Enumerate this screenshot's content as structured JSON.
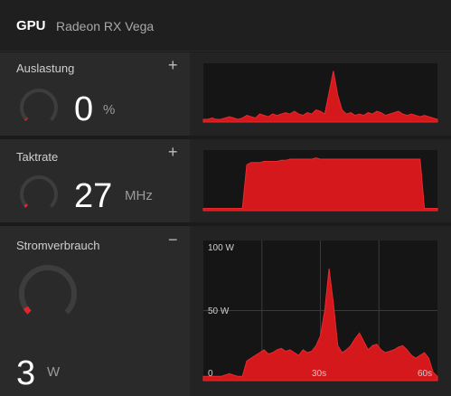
{
  "header": {
    "title": "GPU",
    "subtitle": "Radeon RX Vega"
  },
  "panels": [
    {
      "label": "Auslastung",
      "toggle": "+",
      "value": "0",
      "unit": "%",
      "gauge_fraction": 0.0,
      "graph_series": [
        2,
        2,
        3,
        2,
        2,
        3,
        4,
        3,
        2,
        3,
        5,
        4,
        3,
        6,
        5,
        4,
        6,
        5,
        6,
        7,
        6,
        8,
        6,
        5,
        7,
        6,
        9,
        8,
        6,
        22,
        38,
        20,
        9,
        6,
        7,
        5,
        6,
        5,
        7,
        6,
        8,
        7,
        5,
        6,
        7,
        8,
        6,
        5,
        6,
        5,
        4,
        5,
        4,
        3,
        2
      ]
    },
    {
      "label": "Taktrate",
      "toggle": "+",
      "value": "27",
      "unit": "MHz",
      "gauge_fraction": 0.03,
      "graph_series": [
        2,
        2,
        2,
        2,
        2,
        2,
        2,
        2,
        2,
        2,
        40,
        42,
        42,
        42,
        43,
        43,
        43,
        43,
        44,
        44,
        45,
        45,
        45,
        45,
        45,
        45,
        46,
        45,
        45,
        45,
        45,
        45,
        45,
        45,
        45,
        45,
        45,
        45,
        45,
        45,
        45,
        45,
        45,
        45,
        45,
        45,
        45,
        45,
        45,
        45,
        45,
        2,
        2,
        2,
        2
      ]
    },
    {
      "label": "Stromverbrauch",
      "toggle": "−",
      "value": "3",
      "unit": "W",
      "gauge_fraction": 0.05,
      "graph_y_labels": [
        "100 W",
        "50 W",
        "0"
      ],
      "graph_x_labels": [
        "30s",
        "60s"
      ],
      "graph_series": [
        3,
        3,
        3,
        3,
        3,
        4,
        5,
        4,
        3,
        3,
        14,
        16,
        18,
        20,
        22,
        19,
        20,
        22,
        23,
        21,
        22,
        20,
        18,
        22,
        20,
        21,
        25,
        32,
        50,
        80,
        55,
        25,
        20,
        22,
        25,
        30,
        34,
        28,
        22,
        25,
        26,
        22,
        20,
        21,
        22,
        24,
        25,
        22,
        18,
        16,
        18,
        20,
        16,
        6,
        3
      ]
    }
  ]
}
